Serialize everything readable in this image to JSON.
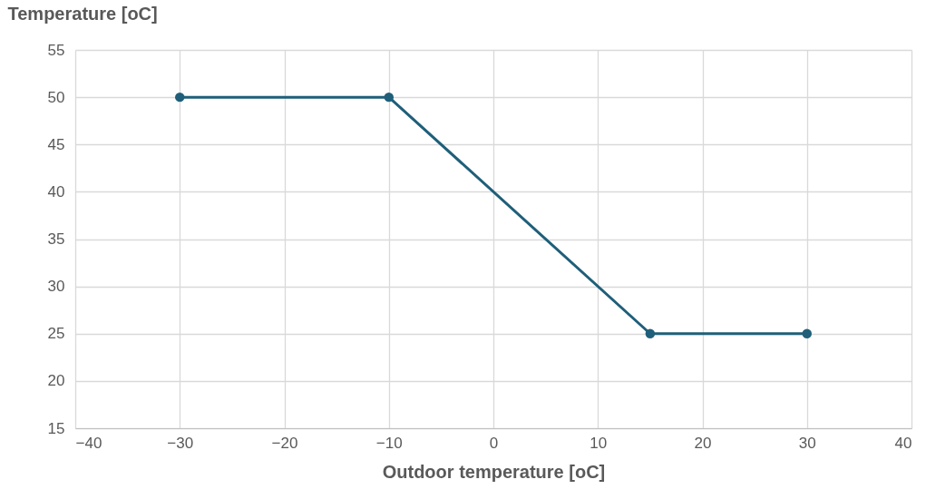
{
  "chart_data": {
    "type": "line",
    "xlabel": "Outdoor temperature [oC]",
    "ylabel": "Temperature [oC]",
    "x": [
      -30,
      -10,
      15,
      30
    ],
    "series": [
      {
        "color": "#1f5f7a",
        "values": [
          50,
          50,
          25,
          25
        ]
      }
    ],
    "xlim": [
      -40,
      40
    ],
    "xticks": [
      -40,
      -30,
      -20,
      -10,
      0,
      10,
      20,
      30,
      40
    ],
    "ylim": [
      15,
      55
    ],
    "yticks": [
      15,
      20,
      25,
      30,
      35,
      40,
      45,
      50,
      55
    ],
    "grid": true,
    "marker": "circle",
    "line_style": "solid"
  }
}
